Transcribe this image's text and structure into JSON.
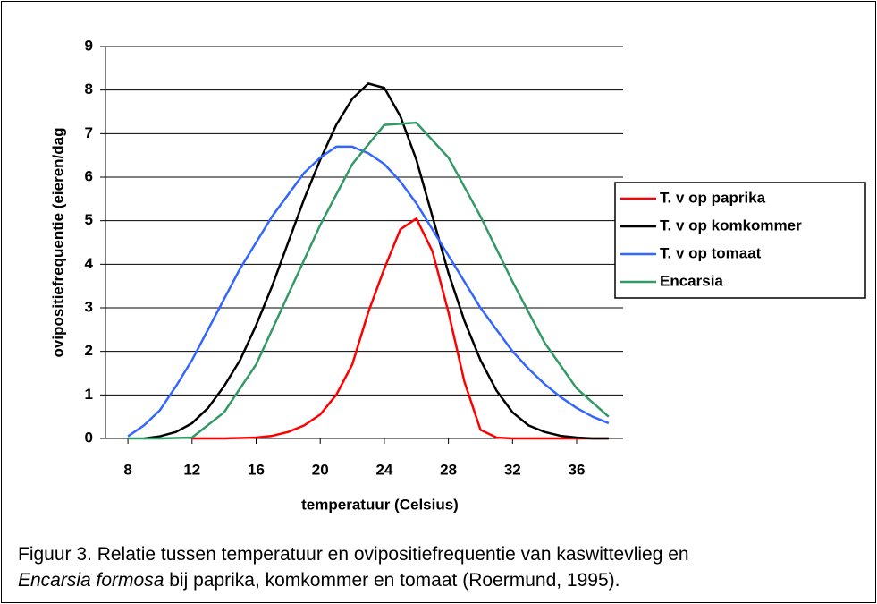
{
  "chart_data": {
    "type": "line",
    "x_label": "temperatuur (Celsius)",
    "y_label": "ovipositiefrequentie (eieren/dag",
    "xlim": [
      6.6,
      38.9
    ],
    "xticks": [
      8,
      12,
      16,
      20,
      24,
      28,
      32,
      36
    ],
    "ylim": [
      0,
      9
    ],
    "yticks": [
      0,
      1,
      2,
      3,
      4,
      5,
      6,
      7,
      8,
      9
    ],
    "grid": true,
    "legend": "right",
    "series": [
      {
        "name": "T. v op paprika",
        "color": "#ff0000",
        "x": [
          12,
          13,
          14,
          15,
          16,
          17,
          18,
          19,
          20,
          21,
          22,
          23,
          24,
          25,
          26,
          27,
          28,
          29,
          30,
          31,
          32,
          33,
          34,
          35,
          36,
          37,
          38
        ],
        "values": [
          0,
          0,
          0,
          0.01,
          0.02,
          0.06,
          0.15,
          0.3,
          0.55,
          1.0,
          1.7,
          2.9,
          3.9,
          4.8,
          5.05,
          4.3,
          2.9,
          1.3,
          0.2,
          0.02,
          0,
          0,
          0,
          0,
          0,
          0,
          0
        ]
      },
      {
        "name": "T. v op komkommer",
        "color": "#000000",
        "x": [
          9,
          10,
          11,
          12,
          13,
          14,
          15,
          16,
          17,
          18,
          19,
          20,
          21,
          22,
          23,
          24,
          25,
          26,
          27,
          28,
          29,
          30,
          31,
          32,
          33,
          34,
          35,
          36,
          37,
          38
        ],
        "values": [
          0,
          0.05,
          0.15,
          0.35,
          0.7,
          1.2,
          1.8,
          2.6,
          3.5,
          4.5,
          5.5,
          6.4,
          7.2,
          7.8,
          8.15,
          8.05,
          7.4,
          6.4,
          5.1,
          3.8,
          2.7,
          1.8,
          1.1,
          0.6,
          0.3,
          0.15,
          0.06,
          0.02,
          0,
          0
        ]
      },
      {
        "name": "T. v op tomaat",
        "color": "#3366ff",
        "x": [
          8,
          9,
          10,
          11,
          12,
          13,
          14,
          15,
          16,
          17,
          18,
          19,
          20,
          21,
          22,
          23,
          24,
          25,
          26,
          27,
          28,
          29,
          30,
          31,
          32,
          33,
          34,
          35,
          36,
          37,
          38
        ],
        "values": [
          0.05,
          0.3,
          0.65,
          1.2,
          1.8,
          2.5,
          3.2,
          3.9,
          4.5,
          5.1,
          5.6,
          6.1,
          6.45,
          6.7,
          6.7,
          6.55,
          6.3,
          5.9,
          5.4,
          4.8,
          4.2,
          3.6,
          3.0,
          2.5,
          2.0,
          1.6,
          1.25,
          0.95,
          0.7,
          0.5,
          0.35
        ]
      },
      {
        "name": "Encarsia",
        "color": "#339966",
        "x": [
          8,
          10,
          12,
          14,
          16,
          18,
          20,
          22,
          24,
          26,
          28,
          30,
          32,
          34,
          36,
          38
        ],
        "values": [
          0,
          0,
          0.02,
          0.6,
          1.7,
          3.3,
          4.9,
          6.3,
          7.2,
          7.25,
          6.45,
          5.1,
          3.6,
          2.2,
          1.15,
          0.5
        ]
      }
    ]
  },
  "caption": {
    "line1": "Figuur 3. Relatie tussen temperatuur en ovipositiefrequentie van kaswittevlieg en",
    "italic": "Encarsia formosa",
    "rest": " bij paprika, komkommer en tomaat (Roermund, 1995)."
  }
}
